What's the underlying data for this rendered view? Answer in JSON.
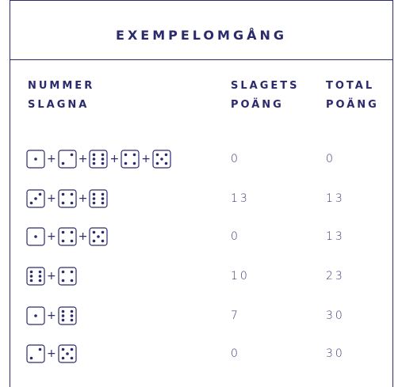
{
  "table": {
    "title": "EXEMPELOMGÅNG",
    "headers": [
      "NUMMER SLAGNA",
      "SLAGETS POÄNG",
      "TOTAL POÄNG"
    ],
    "separator": "+",
    "rows": [
      {
        "dice": [
          1,
          2,
          6,
          4,
          5
        ],
        "score": 0,
        "total": 0
      },
      {
        "dice": [
          3,
          4,
          6
        ],
        "score": 13,
        "total": 13
      },
      {
        "dice": [
          1,
          4,
          5
        ],
        "score": 0,
        "total": 13
      },
      {
        "dice": [
          6,
          4
        ],
        "score": 10,
        "total": 23
      },
      {
        "dice": [
          1,
          6
        ],
        "score": 7,
        "total": 30
      },
      {
        "dice": [
          2,
          5
        ],
        "score": 0,
        "total": 30
      }
    ]
  }
}
